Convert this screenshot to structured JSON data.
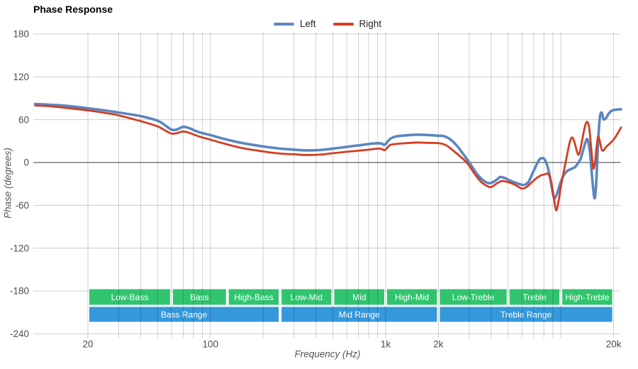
{
  "title": "Phase Response",
  "chart_data": {
    "type": "line",
    "title": "Phase Response",
    "xlabel": "Frequency (Hz)",
    "ylabel": "Phase (degrees)",
    "x_scale": "log",
    "x_range_hz": [
      10,
      22050
    ],
    "y_range_deg": [
      -240,
      180
    ],
    "grid": true,
    "legend_position": "top-center",
    "colors": {
      "grid": "#cccccc",
      "zero_line": "#3c3c3c",
      "tick_text": "#4d4d4d",
      "band_green": "#31c46f",
      "band_blue": "#3598da",
      "band_text": "#ffffff"
    },
    "y_ticks": [
      {
        "v": 180,
        "label": "180"
      },
      {
        "v": 120,
        "label": "120"
      },
      {
        "v": 60,
        "label": "60"
      },
      {
        "v": 0,
        "label": "0"
      },
      {
        "v": -60,
        "label": "-60"
      },
      {
        "v": -120,
        "label": "-120"
      },
      {
        "v": -180,
        "label": "-180"
      },
      {
        "v": -240,
        "label": "-240"
      }
    ],
    "x_ticks": [
      {
        "f": 20,
        "label": "20"
      },
      {
        "f": 100,
        "label": "100"
      },
      {
        "f": 1000,
        "label": "1k"
      },
      {
        "f": 2000,
        "label": "2k"
      },
      {
        "f": 20000,
        "label": "20k"
      }
    ],
    "x_gridlines": [
      20,
      30,
      40,
      50,
      60,
      70,
      80,
      90,
      100,
      200,
      300,
      400,
      500,
      600,
      700,
      800,
      900,
      1000,
      2000,
      3000,
      4000,
      5000,
      6000,
      7000,
      8000,
      9000,
      10000,
      20000
    ],
    "bands": {
      "sub": [
        {
          "label": "Low-Bass",
          "f1": 20,
          "f2": 60
        },
        {
          "label": "Bass",
          "f1": 60,
          "f2": 125
        },
        {
          "label": "High-Bass",
          "f1": 125,
          "f2": 250
        },
        {
          "label": "Low-Mid",
          "f1": 250,
          "f2": 500
        },
        {
          "label": "Mid",
          "f1": 500,
          "f2": 1000
        },
        {
          "label": "High-Mid",
          "f1": 1000,
          "f2": 2000
        },
        {
          "label": "Low-Treble",
          "f1": 2000,
          "f2": 5000
        },
        {
          "label": "Treble",
          "f1": 5000,
          "f2": 10000
        },
        {
          "label": "High-Treble",
          "f1": 10000,
          "f2": 20000
        }
      ],
      "main": [
        {
          "label": "Bass Range",
          "f1": 20,
          "f2": 250
        },
        {
          "label": "Mid Range",
          "f1": 250,
          "f2": 2000
        },
        {
          "label": "Treble Range",
          "f1": 2000,
          "f2": 20000
        }
      ]
    },
    "series": [
      {
        "name": "Left",
        "color": "#5b86c0",
        "points": [
          [
            10,
            82
          ],
          [
            12,
            81
          ],
          [
            15,
            79.5
          ],
          [
            20,
            76
          ],
          [
            25,
            73
          ],
          [
            30,
            70
          ],
          [
            40,
            65
          ],
          [
            50,
            58.5
          ],
          [
            56,
            51
          ],
          [
            60,
            46
          ],
          [
            64,
            46
          ],
          [
            70,
            50
          ],
          [
            76,
            48
          ],
          [
            85,
            43
          ],
          [
            100,
            38.5
          ],
          [
            120,
            33
          ],
          [
            150,
            27.5
          ],
          [
            200,
            22.5
          ],
          [
            250,
            19.5
          ],
          [
            300,
            18
          ],
          [
            350,
            17
          ],
          [
            420,
            17.5
          ],
          [
            500,
            19.5
          ],
          [
            600,
            22
          ],
          [
            700,
            24
          ],
          [
            800,
            26
          ],
          [
            900,
            27
          ],
          [
            950,
            26.5
          ],
          [
            990,
            25
          ],
          [
            1060,
            33
          ],
          [
            1150,
            36.5
          ],
          [
            1300,
            38
          ],
          [
            1500,
            39
          ],
          [
            1750,
            38.5
          ],
          [
            2000,
            37.5
          ],
          [
            2150,
            37
          ],
          [
            2350,
            32
          ],
          [
            2600,
            21
          ],
          [
            3000,
            0
          ],
          [
            3300,
            -15
          ],
          [
            3600,
            -25
          ],
          [
            3900,
            -29
          ],
          [
            4200,
            -26
          ],
          [
            4500,
            -20.5
          ],
          [
            4800,
            -22
          ],
          [
            5200,
            -26
          ],
          [
            5700,
            -29.5
          ],
          [
            6100,
            -31.5
          ],
          [
            6500,
            -28
          ],
          [
            6900,
            -15
          ],
          [
            7300,
            -2
          ],
          [
            7600,
            5
          ],
          [
            8000,
            5.5
          ],
          [
            8300,
            -2
          ],
          [
            8600,
            -16
          ],
          [
            8900,
            -36
          ],
          [
            9150,
            -50
          ],
          [
            9500,
            -44
          ],
          [
            10000,
            -27
          ],
          [
            10500,
            -16
          ],
          [
            11000,
            -11
          ],
          [
            11600,
            -8.5
          ],
          [
            12100,
            -6
          ],
          [
            12600,
            0
          ],
          [
            13000,
            6
          ],
          [
            13500,
            20
          ],
          [
            14000,
            32
          ],
          [
            14300,
            30
          ],
          [
            14700,
            12
          ],
          [
            15100,
            -22
          ],
          [
            15550,
            -50
          ],
          [
            15900,
            -30
          ],
          [
            16300,
            28
          ],
          [
            16700,
            63
          ],
          [
            17100,
            70
          ],
          [
            17500,
            61
          ],
          [
            18000,
            61.5
          ],
          [
            18700,
            68
          ],
          [
            19500,
            72.5
          ],
          [
            20500,
            74
          ],
          [
            21500,
            74.5
          ],
          [
            22050,
            74.5
          ]
        ]
      },
      {
        "name": "Right",
        "color": "#d43d22",
        "points": [
          [
            10,
            80
          ],
          [
            12,
            79
          ],
          [
            15,
            76.5
          ],
          [
            20,
            73
          ],
          [
            25,
            69.5
          ],
          [
            30,
            66
          ],
          [
            40,
            58
          ],
          [
            50,
            50.5
          ],
          [
            56,
            44
          ],
          [
            60,
            40.5
          ],
          [
            64,
            41
          ],
          [
            70,
            43.5
          ],
          [
            76,
            41.5
          ],
          [
            85,
            37
          ],
          [
            100,
            32
          ],
          [
            120,
            26.5
          ],
          [
            150,
            20.5
          ],
          [
            200,
            15.5
          ],
          [
            250,
            12.5
          ],
          [
            300,
            11.5
          ],
          [
            350,
            10.5
          ],
          [
            420,
            11
          ],
          [
            500,
            13
          ],
          [
            600,
            15
          ],
          [
            700,
            16.5
          ],
          [
            800,
            18
          ],
          [
            900,
            19.5
          ],
          [
            950,
            19
          ],
          [
            990,
            17.5
          ],
          [
            1060,
            24.5
          ],
          [
            1150,
            26
          ],
          [
            1300,
            27
          ],
          [
            1500,
            28
          ],
          [
            1750,
            27.5
          ],
          [
            2000,
            27
          ],
          [
            2200,
            24.5
          ],
          [
            2450,
            16
          ],
          [
            2900,
            0
          ],
          [
            3200,
            -15
          ],
          [
            3500,
            -27
          ],
          [
            3800,
            -33
          ],
          [
            4000,
            -34.5
          ],
          [
            4300,
            -29.5
          ],
          [
            4600,
            -26
          ],
          [
            5000,
            -27.5
          ],
          [
            5500,
            -31.5
          ],
          [
            6000,
            -36.5
          ],
          [
            6400,
            -34
          ],
          [
            6800,
            -28
          ],
          [
            7300,
            -21.5
          ],
          [
            7700,
            -18
          ],
          [
            8100,
            -16.5
          ],
          [
            8460,
            -16
          ],
          [
            8800,
            -27
          ],
          [
            9100,
            -48
          ],
          [
            9400,
            -67
          ],
          [
            9700,
            -54
          ],
          [
            10000,
            -34
          ],
          [
            10400,
            -12
          ],
          [
            10800,
            8
          ],
          [
            11200,
            27
          ],
          [
            11560,
            35
          ],
          [
            11900,
            30
          ],
          [
            12480,
            12
          ],
          [
            12800,
            14
          ],
          [
            13200,
            30
          ],
          [
            13700,
            50
          ],
          [
            14100,
            57
          ],
          [
            14500,
            49
          ],
          [
            14900,
            20
          ],
          [
            15300,
            -8
          ],
          [
            15700,
            2
          ],
          [
            16000,
            22
          ],
          [
            16300,
            36
          ],
          [
            16600,
            32
          ],
          [
            17100,
            18
          ],
          [
            17500,
            17
          ],
          [
            18000,
            21
          ],
          [
            18600,
            24.5
          ],
          [
            19300,
            28
          ],
          [
            20000,
            32
          ],
          [
            21000,
            40
          ],
          [
            22050,
            49
          ]
        ]
      }
    ]
  }
}
